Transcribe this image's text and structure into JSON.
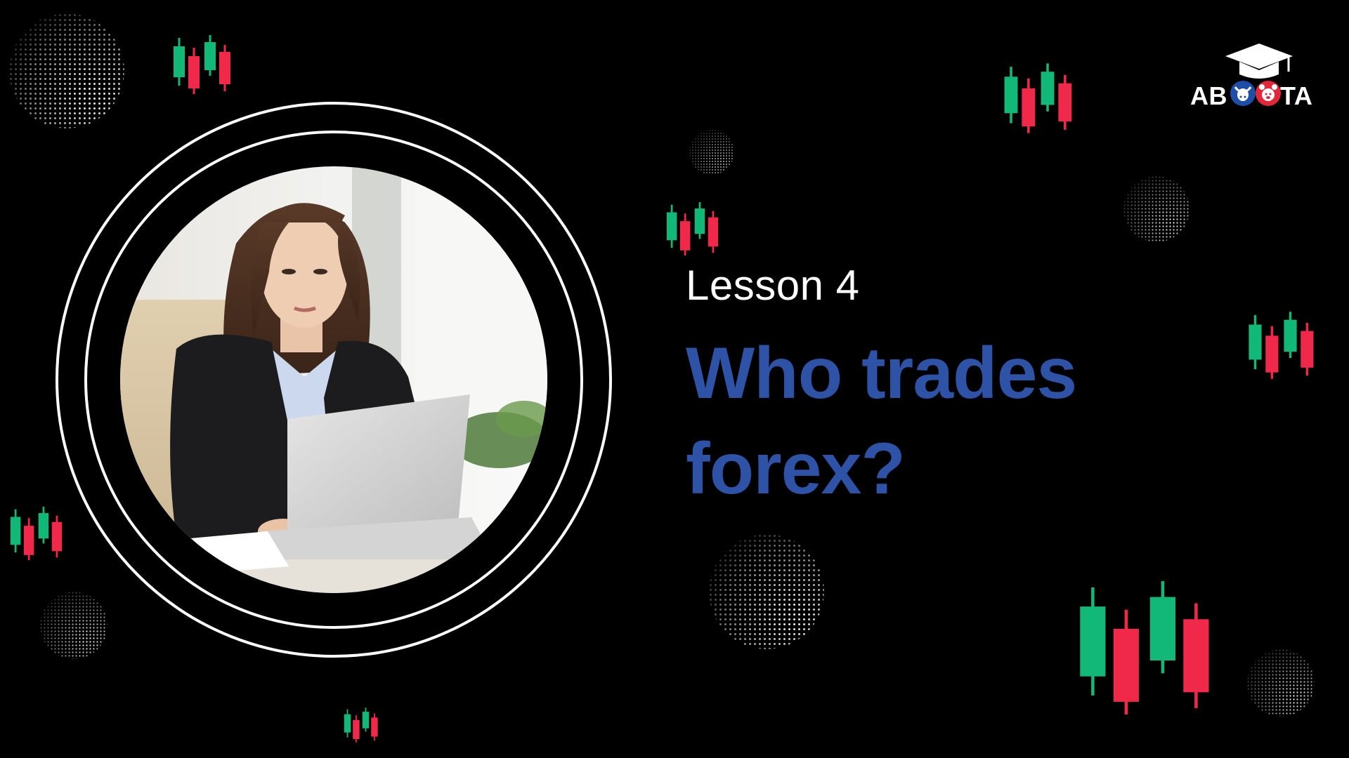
{
  "slide": {
    "lesson_label": "Lesson 4",
    "headline_line1": "Who trades",
    "headline_line2": "forex?"
  },
  "logo": {
    "text_left": "AB",
    "text_right": "TA",
    "icon": "graduation-cap-icon",
    "mascot_icons": [
      "bull-icon",
      "bear-icon"
    ]
  },
  "illustration": {
    "subject": "businesswoman-using-laptop",
    "icons": [
      "candlestick-chart-icon",
      "dotted-sphere-icon"
    ]
  },
  "colors": {
    "background": "#000000",
    "text_white": "#ffffff",
    "headline_blue": "#2d52a6",
    "candle_green": "#12b878",
    "candle_red": "#f0294a",
    "logo_blue": "#1e4fa8",
    "logo_red": "#e3263a"
  }
}
